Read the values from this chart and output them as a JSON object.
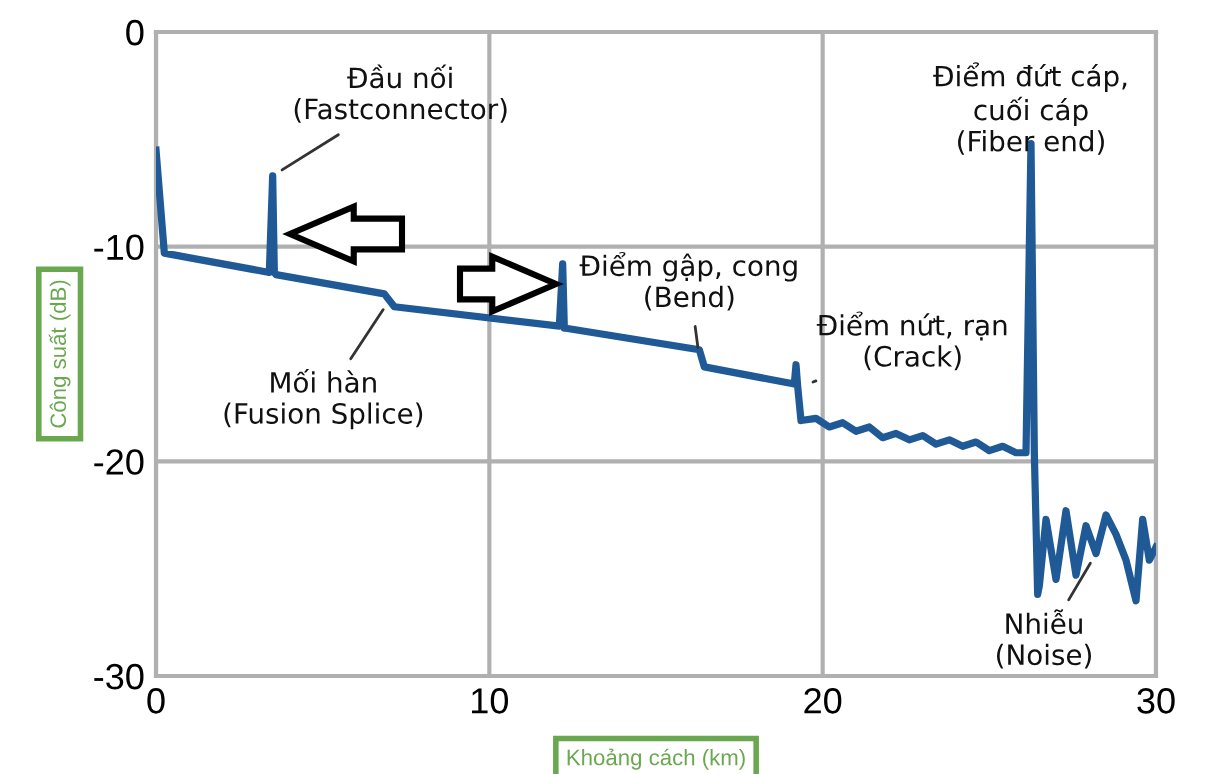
{
  "chart_data": {
    "type": "line",
    "xlabel": "Khoảng cách (km)",
    "ylabel": "Công suất (dB)",
    "xlim": [
      0,
      30
    ],
    "ylim": [
      -30,
      0
    ],
    "xticks": [
      0,
      10,
      20,
      30
    ],
    "yticks": [
      0,
      -10,
      -20,
      -30
    ],
    "grid": true,
    "marker": "none",
    "line_style": "solid",
    "series": [
      {
        "color": "#1f5a96",
        "x": [
          0,
          0.25,
          3.4,
          3.5,
          3.55,
          3.6,
          6.85,
          7.15,
          12.1,
          12.2,
          12.25,
          12.3,
          16.3,
          16.45,
          19.15,
          19.2,
          19.25,
          19.35,
          19.8,
          20.2,
          20.6,
          21.0,
          21.4,
          21.8,
          22.2,
          22.6,
          23.0,
          23.4,
          23.8,
          24.2,
          24.6,
          25.0,
          25.4,
          25.8,
          26.1,
          26.25,
          26.35,
          26.45,
          26.5,
          26.7,
          27.0,
          27.3,
          27.6,
          27.9,
          28.2,
          28.5,
          28.8,
          29.1,
          29.4,
          29.6,
          29.8,
          30.0
        ],
        "values": [
          -5.5,
          -10.3,
          -11.2,
          -6.7,
          -11.2,
          -11.3,
          -12.2,
          -12.8,
          -13.7,
          -10.8,
          -13.8,
          -13.8,
          -14.8,
          -15.6,
          -16.4,
          -15.5,
          -16.5,
          -18.1,
          -18.0,
          -18.4,
          -18.2,
          -18.6,
          -18.4,
          -18.9,
          -18.7,
          -19.0,
          -18.8,
          -19.2,
          -19.0,
          -19.3,
          -19.1,
          -19.5,
          -19.3,
          -19.6,
          -19.6,
          -5.2,
          -19.6,
          -26.2,
          -25.8,
          -22.7,
          -25.5,
          -22.3,
          -25.3,
          -23.0,
          -24.3,
          -22.5,
          -23.4,
          -24.6,
          -26.5,
          -22.7,
          -24.6,
          -24.0
        ]
      }
    ],
    "annotations": [
      {
        "text": "Đầu nối\n(Fastconnector)",
        "x": 3.5,
        "y": -6.7
      },
      {
        "text": "Mối hàn\n(Fusion Splice)",
        "x": 7.0,
        "y": -12.5
      },
      {
        "text": "Điểm gập, cong\n(Bend)",
        "x": 16.3,
        "y": -15.2
      },
      {
        "text": "Điểm nứt, rạn\n(Crack)",
        "x": 19.4,
        "y": -16.5
      },
      {
        "text": "Điểm đứt cáp,\ncuối cáp\n(Fiber end)",
        "x": 26.25,
        "y": -5.2
      },
      {
        "text": "Nhiễu\n(Noise)",
        "x": 28.2,
        "y": -24.3
      }
    ]
  }
}
